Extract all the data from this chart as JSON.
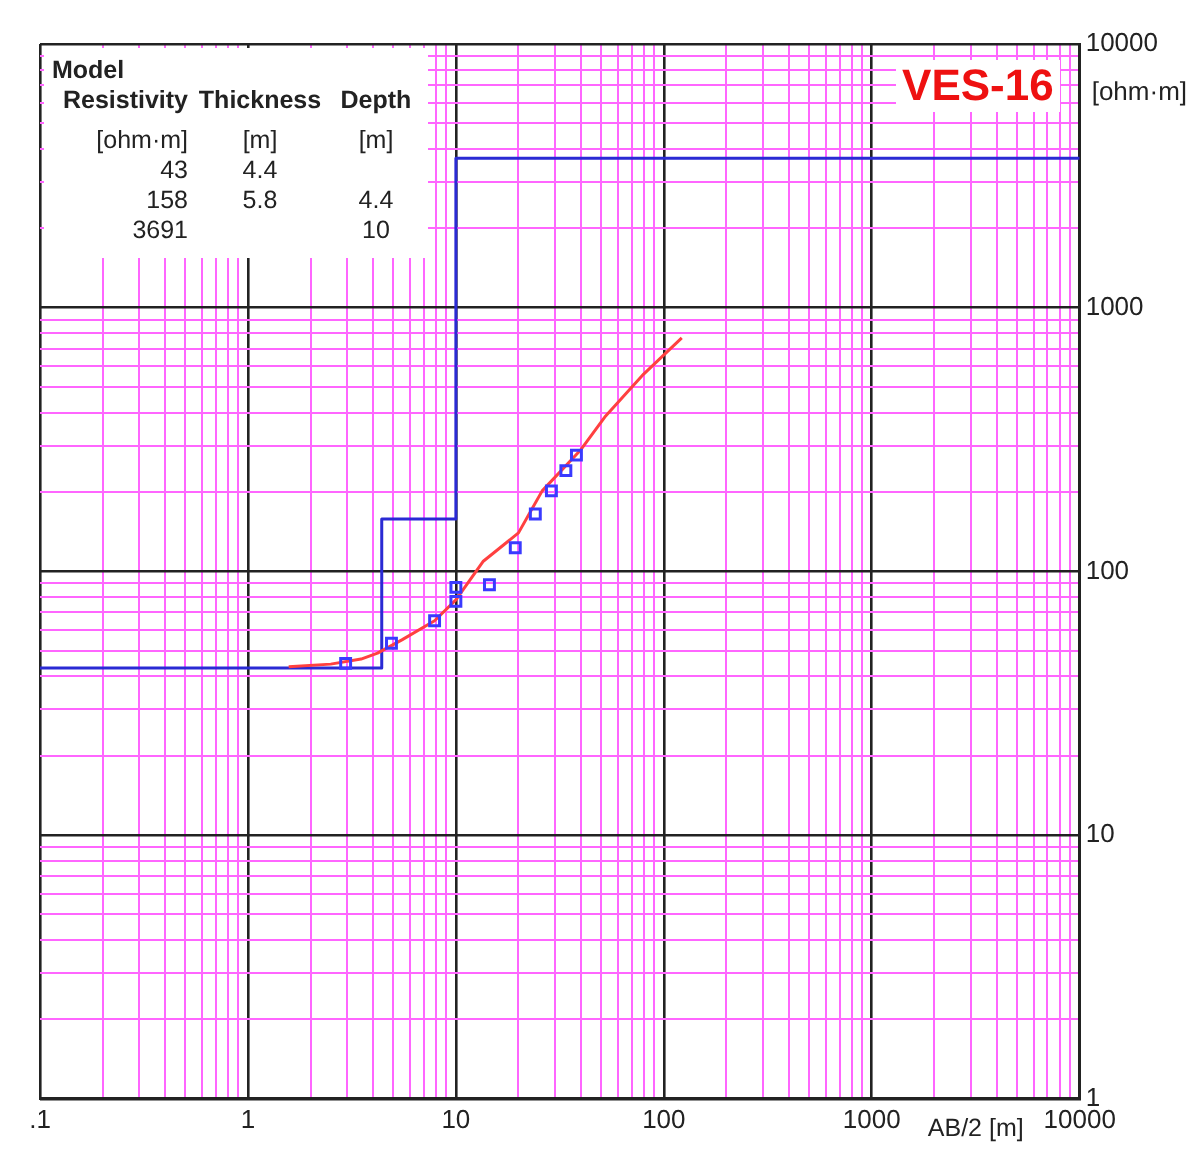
{
  "chart_data": {
    "type": "line",
    "title": "VES-16",
    "xlabel": "AB/2 [m]",
    "ylabel": "[ohm·m]",
    "log": "xy",
    "grid": true,
    "legend": false,
    "xlim": [
      0.1,
      10000
    ],
    "ylim": [
      1,
      10000
    ],
    "xticks": [
      {
        "value": 0.1,
        "label": ".1"
      },
      {
        "value": 0.2,
        "label": null
      },
      {
        "value": 0.3,
        "label": null
      },
      {
        "value": 0.4,
        "label": null
      },
      {
        "value": 0.5,
        "label": null
      },
      {
        "value": 0.6,
        "label": null
      },
      {
        "value": 0.7,
        "label": null
      },
      {
        "value": 0.8,
        "label": null
      },
      {
        "value": 0.9,
        "label": null
      },
      1,
      {
        "value": 2,
        "label": null
      },
      {
        "value": 3,
        "label": null
      },
      {
        "value": 4,
        "label": null
      },
      {
        "value": 5,
        "label": null
      },
      {
        "value": 6,
        "label": null
      },
      {
        "value": 7,
        "label": null
      },
      {
        "value": 8,
        "label": null
      },
      {
        "value": 9,
        "label": null
      },
      10,
      {
        "value": 20,
        "label": null
      },
      {
        "value": 30,
        "label": null
      },
      {
        "value": 40,
        "label": null
      },
      {
        "value": 50,
        "label": null
      },
      {
        "value": 60,
        "label": null
      },
      {
        "value": 70,
        "label": null
      },
      {
        "value": 80,
        "label": null
      },
      {
        "value": 90,
        "label": null
      },
      100,
      {
        "value": 200,
        "label": null
      },
      {
        "value": 300,
        "label": null
      },
      {
        "value": 400,
        "label": null
      },
      {
        "value": 500,
        "label": null
      },
      {
        "value": 600,
        "label": null
      },
      {
        "value": 700,
        "label": null
      },
      {
        "value": 800,
        "label": null
      },
      {
        "value": 900,
        "label": null
      },
      1000,
      {
        "value": 2000,
        "label": null
      },
      {
        "value": 3000,
        "label": null
      },
      {
        "value": 4000,
        "label": null
      },
      {
        "value": 5000,
        "label": null
      },
      {
        "value": 6000,
        "label": null
      },
      {
        "value": 7000,
        "label": null
      },
      {
        "value": 8000,
        "label": null
      },
      {
        "value": 9000,
        "label": null
      },
      10000
    ],
    "yticks": [
      1,
      {
        "value": 2,
        "label": null
      },
      {
        "value": 3,
        "label": null
      },
      {
        "value": 4,
        "label": null
      },
      {
        "value": 5,
        "label": null
      },
      {
        "value": 6,
        "label": null
      },
      {
        "value": 7,
        "label": null
      },
      {
        "value": 8,
        "label": null
      },
      {
        "value": 9,
        "label": null
      },
      10,
      {
        "value": 20,
        "label": null
      },
      {
        "value": 30,
        "label": null
      },
      {
        "value": 40,
        "label": null
      },
      {
        "value": 50,
        "label": null
      },
      {
        "value": 60,
        "label": null
      },
      {
        "value": 70,
        "label": null
      },
      {
        "value": 80,
        "label": null
      },
      {
        "value": 90,
        "label": null
      },
      100,
      {
        "value": 200,
        "label": null
      },
      {
        "value": 300,
        "label": null
      },
      {
        "value": 400,
        "label": null
      },
      {
        "value": 500,
        "label": null
      },
      {
        "value": 600,
        "label": null
      },
      {
        "value": 700,
        "label": null
      },
      {
        "value": 800,
        "label": null
      },
      {
        "value": 900,
        "label": null
      },
      1000,
      {
        "value": 2000,
        "label": null
      },
      {
        "value": 3000,
        "label": null
      },
      {
        "value": 4000,
        "label": null
      },
      {
        "value": 5000,
        "label": null
      },
      {
        "value": 6000,
        "label": null
      },
      {
        "value": 7000,
        "label": null
      },
      {
        "value": 8000,
        "label": null
      },
      {
        "value": 9000,
        "label": null
      },
      10000
    ],
    "annotations": [
      "Model",
      "Resistivity",
      "Thickness",
      "Depth",
      "[ohm·m]",
      "[m]",
      "[m]",
      "43",
      "158",
      "3691",
      "4.4",
      "5.8",
      "4.4",
      "10"
    ],
    "series": [
      {
        "type": "step",
        "color": "#2a2ad4",
        "marker": "none",
        "x": [
          0.1,
          4.4,
          10,
          10000
        ],
        "values": [
          43,
          158,
          3691,
          3691
        ]
      },
      {
        "type": "line",
        "color": "#ff4040",
        "marker": "none",
        "x": [
          1.57,
          2.5,
          3.5,
          4.2,
          5.5,
          7.9,
          10,
          13.5,
          20,
          26,
          40,
          52,
          80,
          122
        ],
        "values": [
          43.5,
          44.5,
          46.5,
          49,
          55,
          65,
          78,
          109,
          140,
          202,
          290,
          385,
          560,
          768
        ]
      },
      {
        "type": "scatter",
        "color": "#3a3aff",
        "marker": "square",
        "x": [
          2.95,
          4.9,
          7.9,
          10,
          10,
          14.5,
          19.3,
          24.1,
          28.8,
          33.8,
          38
        ],
        "values": [
          44.8,
          53.4,
          65,
          87,
          77,
          89,
          123,
          165,
          202,
          241,
          276
        ]
      }
    ]
  }
}
